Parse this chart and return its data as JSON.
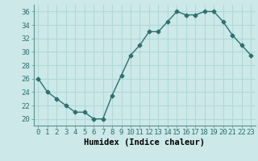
{
  "x": [
    0,
    1,
    2,
    3,
    4,
    5,
    6,
    7,
    8,
    9,
    10,
    11,
    12,
    13,
    14,
    15,
    16,
    17,
    18,
    19,
    20,
    21,
    22,
    23
  ],
  "y": [
    26,
    24,
    23,
    22,
    21,
    21,
    20,
    20,
    23.5,
    26.5,
    29.5,
    31,
    33,
    33,
    34.5,
    36,
    35.5,
    35.5,
    36,
    36,
    34.5,
    32.5,
    31,
    29.5
  ],
  "line_color": "#2d7070",
  "marker": "D",
  "marker_size": 2.5,
  "line_width": 1.0,
  "xlabel": "Humidex (Indice chaleur)",
  "ylabel": "",
  "xlim": [
    -0.5,
    23.5
  ],
  "ylim": [
    19,
    37
  ],
  "yticks": [
    20,
    22,
    24,
    26,
    28,
    30,
    32,
    34,
    36
  ],
  "xticks": [
    0,
    1,
    2,
    3,
    4,
    5,
    6,
    7,
    8,
    9,
    10,
    11,
    12,
    13,
    14,
    15,
    16,
    17,
    18,
    19,
    20,
    21,
    22,
    23
  ],
  "xtick_labels": [
    "0",
    "1",
    "2",
    "3",
    "4",
    "5",
    "6",
    "7",
    "8",
    "9",
    "10",
    "11",
    "12",
    "13",
    "14",
    "15",
    "16",
    "17",
    "18",
    "19",
    "20",
    "21",
    "22",
    "23"
  ],
  "bg_color": "#cce8e8",
  "grid_color": "#b0d8d8",
  "tick_label_fontsize": 6.5,
  "xlabel_fontsize": 7.5
}
